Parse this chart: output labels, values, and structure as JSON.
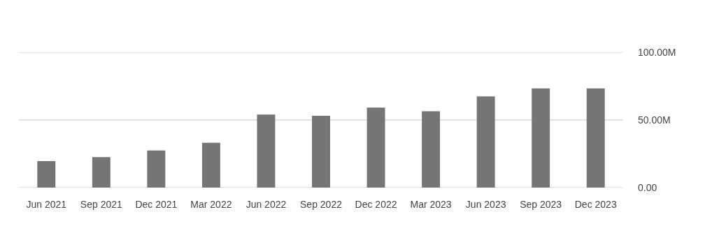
{
  "chart_data": {
    "type": "bar",
    "categories": [
      "Jun 2021",
      "Sep 2021",
      "Dec 2021",
      "Mar 2022",
      "Jun 2022",
      "Sep 2022",
      "Dec 2022",
      "Mar 2023",
      "Jun 2023",
      "Sep 2023",
      "Dec 2023"
    ],
    "values": [
      19.6,
      22.5,
      27.5,
      33.1,
      54,
      53.1,
      59.1,
      56.5,
      67.4,
      73.3,
      73.3
    ],
    "color": "#757575",
    "ylim": [
      0,
      100
    ],
    "yticks": [
      {
        "value": 0,
        "label": "0.00"
      },
      {
        "value": 50,
        "label": "50.00M"
      },
      {
        "value": 100,
        "label": "100.00M"
      }
    ],
    "grid": "y"
  }
}
